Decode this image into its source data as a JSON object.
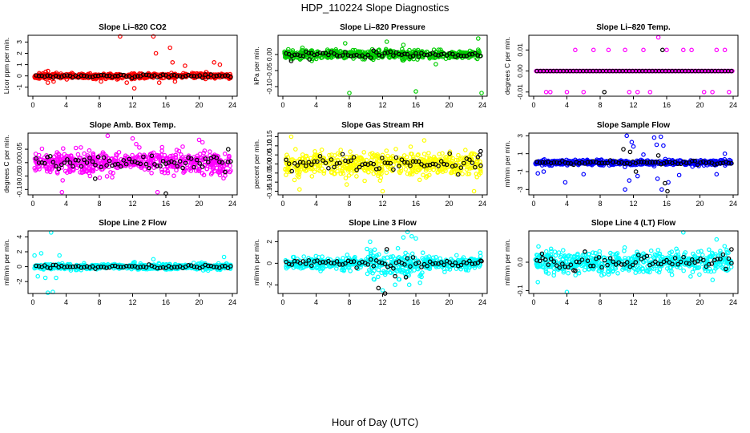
{
  "figure": {
    "title": "HDP_110224  Slope Diagnostics",
    "xlabel": "Hour of Day (UTC)"
  },
  "colors": {
    "red": "#ff0000",
    "green": "#00cc00",
    "magenta": "#ff00ff",
    "yellow": "#ffff00",
    "blue": "#0000ff",
    "cyan": "#00ffff",
    "black": "#000000"
  },
  "chart_data": [
    {
      "type": "scatter",
      "title": "Slope Li–820 CO2",
      "ylabel": "Licor ppm per min.",
      "color": "red",
      "xlim": [
        0,
        24
      ],
      "xticks": [
        0,
        4,
        8,
        12,
        16,
        20,
        24
      ],
      "ylim": [
        -1.8,
        3.6
      ],
      "yticks": [
        -1,
        0,
        1,
        2,
        3
      ],
      "spread": 0.22,
      "baseline": 0.0,
      "outliers": [
        [
          10.5,
          3.5
        ],
        [
          11.3,
          -0.6
        ],
        [
          12.2,
          -1.1
        ],
        [
          14.5,
          3.5
        ],
        [
          14.8,
          2.0
        ],
        [
          15.2,
          -0.6
        ],
        [
          16.5,
          2.5
        ],
        [
          16.8,
          1.2
        ],
        [
          17.1,
          -0.5
        ],
        [
          21.8,
          1.2
        ],
        [
          22.5,
          1.0
        ],
        [
          1.8,
          -0.6
        ],
        [
          2.5,
          -0.5
        ],
        [
          8.2,
          -0.5
        ],
        [
          18.3,
          0.9
        ]
      ],
      "blackOutliers": [],
      "seed": 11
    },
    {
      "type": "scatter",
      "title": "Slope Li–820 Pressure",
      "ylabel": "kPa per min.",
      "color": "green",
      "xlim": [
        0,
        24
      ],
      "xticks": [
        0,
        4,
        8,
        12,
        16,
        20,
        24
      ],
      "ylim": [
        -0.13,
        0.06
      ],
      "yticks": [
        -0.1,
        -0.05,
        0.0
      ],
      "spread": 0.012,
      "baseline": 0.0,
      "outliers": [
        [
          8.0,
          -0.12
        ],
        [
          16.0,
          -0.115
        ],
        [
          23.9,
          -0.12
        ],
        [
          12.5,
          0.04
        ],
        [
          23.5,
          0.05
        ],
        [
          7.5,
          0.035
        ],
        [
          18.4,
          -0.03
        ],
        [
          14.5,
          0.03
        ]
      ],
      "blackOutliers": [
        [
          1.0,
          -0.02
        ],
        [
          3.2,
          -0.015
        ]
      ],
      "seed": 22
    },
    {
      "type": "scatter",
      "title": "Slope Li–820 Temp.",
      "ylabel": "degrees C per min.",
      "color": "magenta",
      "xlim": [
        0,
        24
      ],
      "xticks": [
        0,
        4,
        8,
        12,
        16,
        20,
        24
      ],
      "ylim": [
        -0.012,
        0.017
      ],
      "yticks": [
        -0.01,
        0.0,
        0.01
      ],
      "spread": 0.0,
      "baseline": 0.0,
      "dense": true,
      "outliers": [
        [
          5.0,
          0.01
        ],
        [
          7.2,
          0.01
        ],
        [
          9.0,
          0.01
        ],
        [
          11.0,
          0.01
        ],
        [
          13.2,
          0.01
        ],
        [
          15.0,
          0.016
        ],
        [
          16.0,
          0.01
        ],
        [
          18.0,
          0.01
        ],
        [
          19.0,
          0.01
        ],
        [
          22.0,
          0.01
        ],
        [
          23.0,
          0.01
        ],
        [
          1.5,
          -0.01
        ],
        [
          2.0,
          -0.01
        ],
        [
          4.0,
          -0.01
        ],
        [
          6.0,
          -0.01
        ],
        [
          11.5,
          -0.01
        ],
        [
          12.5,
          -0.01
        ],
        [
          14.0,
          -0.01
        ],
        [
          20.5,
          -0.01
        ],
        [
          21.5,
          -0.01
        ],
        [
          23.5,
          -0.01
        ]
      ],
      "blackOutliers": [
        [
          8.5,
          -0.01
        ],
        [
          15.5,
          0.01
        ]
      ],
      "seed": 33
    },
    {
      "type": "scatter",
      "title": "Slope Amb. Box Temp.",
      "ylabel": "degrees C per min.",
      "color": "magenta",
      "xlim": [
        0,
        24
      ],
      "xticks": [
        0,
        4,
        8,
        12,
        16,
        20,
        24
      ],
      "ylim": [
        -0.12,
        0.11
      ],
      "yticks": [
        -0.1,
        -0.05,
        0.0,
        0.05
      ],
      "spread": 0.04,
      "baseline": 0.0,
      "outliers": [
        [
          9.0,
          0.1
        ],
        [
          3.5,
          -0.11
        ],
        [
          15.0,
          -0.11
        ],
        [
          12.0,
          0.09
        ],
        [
          20.0,
          0.085
        ]
      ],
      "blackOutliers": [
        [
          16.0,
          -0.115
        ],
        [
          7.5,
          -0.06
        ],
        [
          23.5,
          0.05
        ]
      ],
      "seed": 44
    },
    {
      "type": "scatter",
      "title": "Slope Gas Stream RH",
      "ylabel": "percent per min.",
      "color": "yellow",
      "xlim": [
        0,
        24
      ],
      "xticks": [
        0,
        4,
        8,
        12,
        16,
        20,
        24
      ],
      "ylim": [
        -0.17,
        0.17
      ],
      "yticks": [
        -0.15,
        -0.1,
        -0.05,
        0.0,
        0.05,
        0.1,
        0.15
      ],
      "spread": 0.06,
      "baseline": 0.0,
      "outliers": [
        [
          1.0,
          0.15
        ],
        [
          12.0,
          -0.15
        ],
        [
          2.0,
          -0.14
        ],
        [
          23.0,
          -0.15
        ],
        [
          17.0,
          0.13
        ]
      ],
      "blackOutliers": [
        [
          23.8,
          0.07
        ],
        [
          23.7,
          0.05
        ]
      ],
      "seed": 55
    },
    {
      "type": "scatter",
      "title": "Slope Sample Flow",
      "ylabel": "ml/min per min.",
      "color": "blue",
      "xlim": [
        0,
        24
      ],
      "xticks": [
        0,
        4,
        8,
        12,
        16,
        20,
        24
      ],
      "ylim": [
        -3.6,
        3.3
      ],
      "yticks": [
        -3,
        -1,
        1,
        3
      ],
      "spread": 0.25,
      "baseline": 0.0,
      "outliers": [
        [
          11.2,
          3.0
        ],
        [
          11.8,
          2.3
        ],
        [
          12.0,
          1.8
        ],
        [
          14.5,
          2.8
        ],
        [
          14.8,
          2.0
        ],
        [
          15.3,
          2.9
        ],
        [
          15.6,
          1.9
        ],
        [
          11.0,
          -3.0
        ],
        [
          11.5,
          -2.0
        ],
        [
          12.5,
          -1.5
        ],
        [
          14.9,
          -1.8
        ],
        [
          15.4,
          -3.0
        ],
        [
          16.2,
          -2.2
        ],
        [
          3.8,
          -2.2
        ],
        [
          6.0,
          -1.3
        ],
        [
          17.5,
          -1.4
        ],
        [
          22.0,
          -1.3
        ],
        [
          1.2,
          -1.0
        ],
        [
          0.5,
          -1.2
        ],
        [
          23.0,
          1.0
        ],
        [
          13.2,
          0.9
        ]
      ],
      "blackOutliers": [
        [
          10.8,
          1.5
        ],
        [
          11.6,
          1.2
        ],
        [
          12.3,
          -1.0
        ],
        [
          15.8,
          -2.3
        ],
        [
          16.1,
          -3.2
        ],
        [
          15.0,
          0.8
        ]
      ],
      "seed": 66
    },
    {
      "type": "scatter",
      "title": "Slope Line 2 Flow",
      "ylabel": "ml/min per min.",
      "color": "cyan",
      "xlim": [
        0,
        24
      ],
      "xticks": [
        0,
        4,
        8,
        12,
        16,
        20,
        24
      ],
      "ylim": [
        -3.6,
        4.8
      ],
      "yticks": [
        -2,
        0,
        2,
        4
      ],
      "spread": 0.35,
      "baseline": 0.0,
      "outliers": [
        [
          2.2,
          4.6
        ],
        [
          1.8,
          -3.5
        ],
        [
          2.4,
          -3.4
        ],
        [
          2.8,
          -1.5
        ],
        [
          0.2,
          1.5
        ],
        [
          1.0,
          1.8
        ],
        [
          3.2,
          1.5
        ],
        [
          0.6,
          -1.3
        ],
        [
          1.5,
          -1.5
        ],
        [
          14.5,
          1.0
        ],
        [
          23.0,
          1.3
        ]
      ],
      "blackOutliers": [],
      "seed": 77
    },
    {
      "type": "scatter",
      "title": "Slope Line 3 Flow",
      "ylabel": "ml/min per min.",
      "color": "cyan",
      "xlim": [
        0,
        24
      ],
      "xticks": [
        0,
        4,
        8,
        12,
        16,
        20,
        24
      ],
      "ylim": [
        -2.8,
        3.0
      ],
      "yticks": [
        -2,
        0,
        2
      ],
      "spread": 0.5,
      "baseline": 0.0,
      "wideMid": true,
      "outliers": [
        [
          15.0,
          2.9
        ],
        [
          14.5,
          2.4
        ],
        [
          15.5,
          2.5
        ],
        [
          16.0,
          2.3
        ],
        [
          10.5,
          2.0
        ],
        [
          12.0,
          -2.5
        ],
        [
          13.5,
          -2.0
        ],
        [
          14.0,
          -1.5
        ],
        [
          15.2,
          -2.0
        ],
        [
          16.5,
          -1.8
        ],
        [
          11.0,
          -1.5
        ]
      ],
      "blackOutliers": [
        [
          11.5,
          -2.3
        ],
        [
          12.3,
          -2.8
        ],
        [
          13.5,
          -1.2
        ],
        [
          14.8,
          -1.3
        ],
        [
          12.5,
          1.3
        ],
        [
          23.9,
          0.2
        ]
      ],
      "seed": 88
    },
    {
      "type": "scatter",
      "title": "Slope Line 4 (LT) Flow",
      "ylabel": "ml/min per min.",
      "color": "cyan",
      "xlim": [
        0,
        24
      ],
      "xticks": [
        0,
        4,
        8,
        12,
        16,
        20,
        24
      ],
      "ylim": [
        -0.11,
        0.11
      ],
      "yticks": [
        -0.1,
        0.0
      ],
      "spread": 0.035,
      "baseline": 0.0,
      "outliers": [
        [
          4.0,
          -0.105
        ],
        [
          18.0,
          0.105
        ],
        [
          0.5,
          -0.07
        ],
        [
          22.0,
          0.08
        ]
      ],
      "blackOutliers": [
        [
          23.8,
          0.045
        ],
        [
          1.0,
          0.03
        ],
        [
          5.0,
          -0.03
        ]
      ],
      "seed": 99
    }
  ]
}
